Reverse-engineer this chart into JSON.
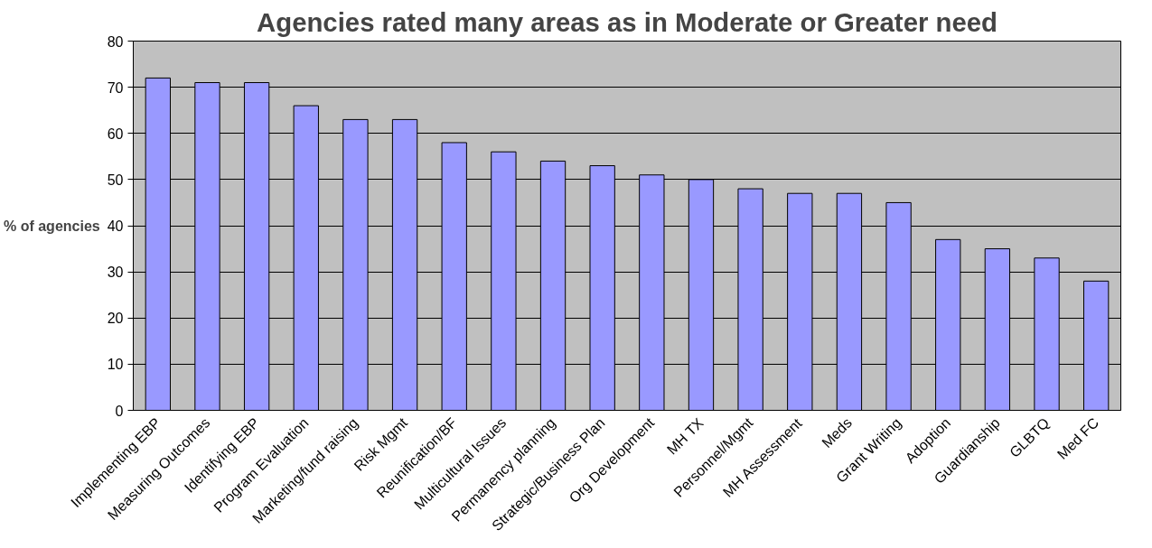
{
  "chart_data": {
    "type": "bar",
    "title": "Agencies rated many areas as in Moderate or Greater need",
    "ylabel": "% of agencies",
    "categories": [
      "Implementing EBP",
      "Measuring Outcomes",
      "Identifying EBP",
      "Program Evaluation",
      "Marketing/fund raising",
      "Risk Mgmt",
      "Reunification/BF",
      "Multicultural Issues",
      "Permanency planning",
      "Strategic/Business Plan",
      "Org Development",
      "MH TX",
      "Personnel/Mgmt",
      "MH Assessment",
      "Meds",
      "Grant Writing",
      "Adoption",
      "Guardianship",
      "GLBTQ",
      "Med FC"
    ],
    "values": [
      72,
      71,
      71,
      66,
      63,
      63,
      58,
      56,
      54,
      53,
      51,
      50,
      48,
      47,
      47,
      45,
      37,
      35,
      33,
      28
    ],
    "color": "#9999ff",
    "ylim": [
      0,
      80
    ],
    "yticks": [
      0,
      10,
      20,
      30,
      40,
      50,
      60,
      70,
      80
    ],
    "grid": "y"
  }
}
